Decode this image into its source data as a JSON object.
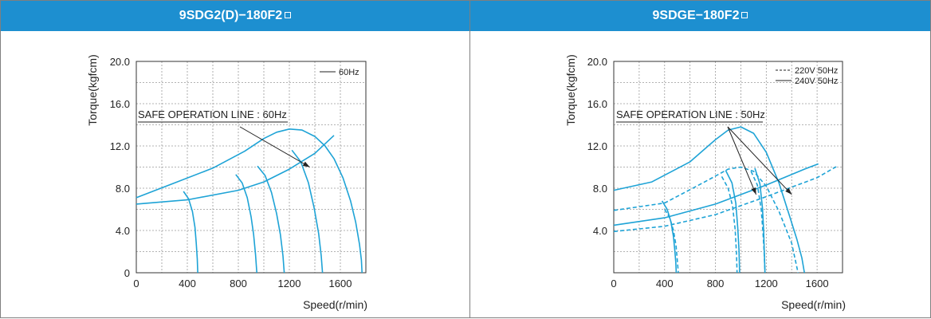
{
  "charts": [
    {
      "header_title": "9SDG2(D)−180F2",
      "chart_data": {
        "type": "line",
        "title": "",
        "xlabel": "Speed(r/min)",
        "ylabel": "Torque(kgfcm)",
        "xlim": [
          0,
          1800
        ],
        "ylim": [
          0,
          20
        ],
        "x_ticks": [
          0,
          400,
          800,
          1200,
          1600
        ],
        "x_tick_labels": [
          "0",
          "400",
          "800",
          "1200",
          "1600"
        ],
        "y_ticks": [
          0,
          4,
          8,
          12,
          16,
          20
        ],
        "y_tick_labels": [
          "0",
          "4.0",
          "8.0",
          "12.0",
          "16.0",
          "20.0"
        ],
        "grid": true,
        "legend_position": "top-right",
        "legend": [
          {
            "label": "60Hz",
            "style": "solid"
          }
        ],
        "annotation": {
          "text": "SAFE OPERATION LINE : 60Hz",
          "arrow_targets": [
            [
              1360,
              10.0
            ]
          ]
        },
        "series": [
          {
            "style": "solid",
            "x": [
              0,
              400,
              800,
              1000,
              1200,
              1400,
              1550
            ],
            "y": [
              6.5,
              6.9,
              7.8,
              8.6,
              9.8,
              11.3,
              13.0
            ]
          },
          {
            "style": "solid",
            "x": [
              0,
              300,
              600,
              850,
              1000,
              1100,
              1200,
              1300,
              1400,
              1480,
              1550,
              1620,
              1680,
              1720,
              1750,
              1765,
              1770
            ],
            "y": [
              7.1,
              8.5,
              9.9,
              11.5,
              12.7,
              13.3,
              13.6,
              13.5,
              12.9,
              12.0,
              10.8,
              9.0,
              6.8,
              4.8,
              2.7,
              1.2,
              0
            ]
          },
          {
            "style": "solid",
            "x": [
              370,
              410,
              440,
              460,
              470,
              478,
              482
            ],
            "y": [
              7.7,
              7.0,
              5.8,
              4.3,
              2.8,
              1.3,
              0
            ]
          },
          {
            "style": "solid",
            "x": [
              780,
              830,
              870,
              900,
              920,
              935,
              945
            ],
            "y": [
              9.3,
              8.5,
              7.1,
              5.3,
              3.6,
              1.7,
              0
            ]
          },
          {
            "style": "solid",
            "x": [
              950,
              1010,
              1060,
              1100,
              1130,
              1150,
              1160
            ],
            "y": [
              10.1,
              9.2,
              7.6,
              5.6,
              3.6,
              1.6,
              0
            ]
          },
          {
            "style": "solid",
            "x": [
              1220,
              1290,
              1350,
              1395,
              1430,
              1450,
              1460
            ],
            "y": [
              11.6,
              10.5,
              8.5,
              6.1,
              3.7,
              1.6,
              0
            ]
          }
        ]
      }
    },
    {
      "header_title": "9SDGE−180F2",
      "chart_data": {
        "type": "line",
        "title": "",
        "xlabel": "Speed(r/min)",
        "ylabel": "Torque(kgfcm)",
        "xlim": [
          0,
          1800
        ],
        "ylim": [
          0,
          20
        ],
        "x_ticks": [
          0,
          400,
          800,
          1200,
          1600
        ],
        "x_tick_labels": [
          "0",
          "400",
          "800",
          "1200",
          "1600"
        ],
        "y_ticks": [
          0,
          4,
          8,
          12,
          16,
          20
        ],
        "y_tick_labels": [
          "",
          "4.0",
          "8.0",
          "12.0",
          "16.0",
          "20.0"
        ],
        "grid": true,
        "legend_position": "top-right",
        "legend": [
          {
            "label": "220V 50Hz",
            "style": "dashed"
          },
          {
            "label": "240V 50Hz",
            "style": "solid"
          }
        ],
        "annotation": {
          "text": "SAFE OPERATION LINE : 50Hz",
          "arrow_targets": [
            [
              1120,
              7.4
            ],
            [
              1400,
              7.4
            ]
          ]
        },
        "series": [
          {
            "name": "240V 50Hz",
            "style": "solid",
            "x": [
              0,
              400,
              800,
              1200,
              1500,
              1610
            ],
            "y": [
              4.5,
              5.2,
              6.5,
              8.3,
              9.8,
              10.3
            ]
          },
          {
            "name": "240V 50Hz",
            "style": "solid",
            "x": [
              0,
              300,
              600,
              800,
              900,
              1000,
              1100,
              1200,
              1300,
              1380,
              1440,
              1480,
              1500
            ],
            "y": [
              7.8,
              8.6,
              10.5,
              12.6,
              13.5,
              13.8,
              13.2,
              11.4,
              8.5,
              5.5,
              3.2,
              1.4,
              0
            ]
          },
          {
            "name": "240V 50Hz",
            "style": "solid",
            "x": [
              380,
              420,
              450,
              470,
              480,
              488,
              492
            ],
            "y": [
              6.8,
              6.0,
              4.8,
              3.4,
              2.2,
              1.0,
              0
            ]
          },
          {
            "name": "240V 50Hz",
            "style": "solid",
            "x": [
              880,
              930,
              960,
              975,
              985,
              990
            ],
            "y": [
              9.7,
              8.5,
              6.6,
              4.3,
              2.2,
              0
            ]
          },
          {
            "name": "240V 50Hz",
            "style": "solid",
            "x": [
              1110,
              1150,
              1170,
              1180,
              1185,
              1190
            ],
            "y": [
              9.9,
              8.4,
              6.1,
              3.9,
              1.9,
              0
            ]
          },
          {
            "name": "220V 50Hz",
            "style": "dashed",
            "x": [
              0,
              400,
              800,
              1200,
              1600,
              1760
            ],
            "y": [
              3.9,
              4.4,
              5.5,
              7.2,
              9.0,
              10.1
            ]
          },
          {
            "name": "220V 50Hz",
            "style": "dashed",
            "x": [
              0,
              400,
              700,
              900,
              1000,
              1100,
              1200,
              1300,
              1400,
              1450
            ],
            "y": [
              5.9,
              6.6,
              8.5,
              9.8,
              10.0,
              9.6,
              8.2,
              5.8,
              2.8,
              0
            ]
          },
          {
            "name": "220V 50Hz",
            "style": "dashed",
            "x": [
              400,
              440,
              470,
              490,
              500,
              508
            ],
            "y": [
              6.0,
              5.2,
              4.0,
              2.6,
              1.2,
              0
            ]
          },
          {
            "name": "220V 50Hz",
            "style": "dashed",
            "x": [
              850,
              900,
              935,
              955,
              965,
              970
            ],
            "y": [
              9.1,
              8.0,
              6.3,
              4.1,
              1.9,
              0
            ]
          },
          {
            "name": "220V 50Hz",
            "style": "dashed",
            "x": [
              1080,
              1130,
              1160,
              1175,
              1185,
              1190
            ],
            "y": [
              9.6,
              8.3,
              6.0,
              3.7,
              1.6,
              0
            ]
          }
        ]
      }
    }
  ],
  "colors": {
    "header": "#1d8fd0",
    "curve": "#1ea3d6",
    "grid": "#9a9a9a",
    "axis": "#333333"
  },
  "header_icon": "small-square-icon"
}
